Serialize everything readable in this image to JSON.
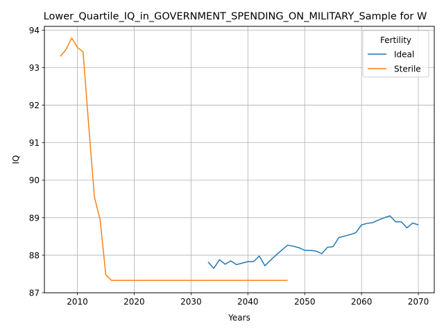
{
  "chart_data": {
    "type": "line",
    "title": "Lower_Quartile_IQ_in_GOVERNMENT_SPENDING_ON_MILITARY_Sample for W",
    "xlabel": "Years",
    "ylabel": "IQ",
    "xlim": [
      2004.2,
      2072.8
    ],
    "ylim": [
      87.0,
      94.1
    ],
    "xticks": [
      2010,
      2020,
      2030,
      2040,
      2050,
      2060,
      2070
    ],
    "yticks": [
      87,
      88,
      89,
      90,
      91,
      92,
      93,
      94
    ],
    "grid": true,
    "legend": {
      "title": "Fertility",
      "position": "top-right"
    },
    "series": [
      {
        "name": "Ideal",
        "color": "#1f77b4",
        "x": [
          2033,
          2034,
          2035,
          2036,
          2037,
          2038,
          2039,
          2040,
          2041,
          2042,
          2043,
          2044,
          2045,
          2046,
          2047,
          2048,
          2049,
          2050,
          2051,
          2052,
          2053,
          2054,
          2055,
          2056,
          2057,
          2058,
          2059,
          2060,
          2061,
          2062,
          2063,
          2064,
          2065,
          2066,
          2067,
          2068,
          2069,
          2070
        ],
        "y": [
          87.82,
          87.65,
          87.88,
          87.76,
          87.85,
          87.75,
          87.79,
          87.83,
          87.83,
          87.98,
          87.72,
          87.87,
          88.01,
          88.14,
          88.27,
          88.24,
          88.2,
          88.13,
          88.13,
          88.11,
          88.04,
          88.21,
          88.23,
          88.47,
          88.51,
          88.55,
          88.6,
          88.81,
          88.85,
          88.87,
          88.94,
          89.0,
          89.05,
          88.89,
          88.89,
          88.73,
          88.86,
          88.81
        ]
      },
      {
        "name": "Sterile",
        "color": "#ff7f0e",
        "x": [
          2007,
          2008,
          2009,
          2010,
          2011,
          2012,
          2013,
          2014,
          2015,
          2016,
          2017,
          2018,
          2019,
          2020,
          2021,
          2022,
          2023,
          2024,
          2025,
          2026,
          2027,
          2028,
          2029,
          2030,
          2031,
          2032,
          2033,
          2034,
          2035,
          2036,
          2037,
          2038,
          2039,
          2040,
          2041,
          2042,
          2043,
          2044,
          2045,
          2046,
          2047
        ],
        "y": [
          93.3,
          93.48,
          93.79,
          93.54,
          93.42,
          91.45,
          89.55,
          88.95,
          87.48,
          87.33,
          87.33,
          87.33,
          87.33,
          87.33,
          87.33,
          87.33,
          87.33,
          87.33,
          87.33,
          87.33,
          87.33,
          87.33,
          87.33,
          87.33,
          87.33,
          87.33,
          87.33,
          87.33,
          87.33,
          87.33,
          87.33,
          87.33,
          87.33,
          87.33,
          87.33,
          87.33,
          87.33,
          87.33,
          87.33,
          87.33,
          87.33
        ]
      }
    ]
  }
}
